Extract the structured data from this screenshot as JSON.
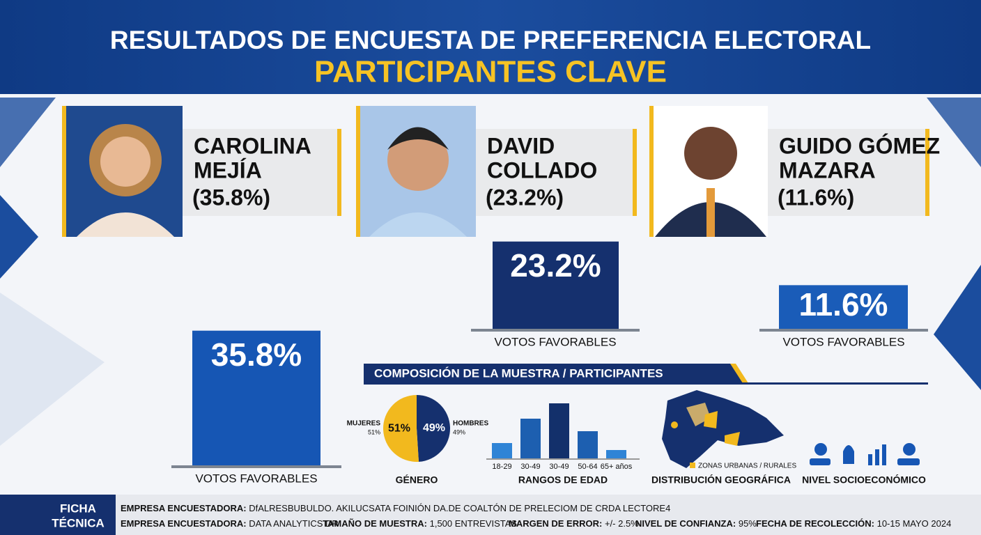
{
  "header": {
    "title": "RESULTADOS DE ENCUESTA DE PREFERENCIA ELECTORAL",
    "subtitle": "PARTICIPANTES CLAVE"
  },
  "candidates": [
    {
      "name_lines": [
        "CAROLINA",
        "MEJÍA"
      ],
      "share_label": "(35.8%)",
      "value": 35.8,
      "value_label": "35.8%",
      "caption": "VOTOS FAVORABLES",
      "color": "#1656b4"
    },
    {
      "name_lines": [
        "DAVID",
        "COLLADO"
      ],
      "share_label": "(23.2%)",
      "value": 23.2,
      "value_label": "23.2%",
      "caption": "VOTOS FAVORABLES",
      "color": "#15306e"
    },
    {
      "name_lines": [
        "GUIDO GÓMEZ",
        "MAZARA"
      ],
      "share_label": "(11.6%)",
      "value": 11.6,
      "value_label": "11.6%",
      "caption": "VOTOS FAVORABLES",
      "color": "#1a5cb8"
    }
  ],
  "composition": {
    "title": "COMPOSICIÓN DE LA MUESTRA / PARTICIPANTES",
    "gender": {
      "title": "GÉNERO",
      "slices": [
        {
          "name": "MUJERES",
          "value": 51,
          "value_label": "51%",
          "color": "#f2b91e"
        },
        {
          "name": "HOMBRES",
          "value": 49,
          "value_label": "49%",
          "color": "#15306e"
        }
      ]
    },
    "age": {
      "title": "RANGOS DE EDAD",
      "categories": [
        "18-29",
        "30-49",
        "30-49",
        "50-64",
        "65+ años"
      ],
      "values": [
        22,
        57,
        79,
        39,
        12
      ],
      "colors": [
        "#2f84d6",
        "#1d5fb0",
        "#13306b",
        "#1d5fb0",
        "#2f84d6"
      ]
    },
    "geography": {
      "title": "DISTRIBUCIÓN GEOGRÁFICA",
      "legend": "ZONAS URBANAS / RURALES"
    },
    "socioeconomic": {
      "title": "NIVEL SOCIOECONÓMICO"
    }
  },
  "footer": {
    "label_lines": [
      "FICHA",
      "TÉCNICA"
    ],
    "line1": {
      "label": "EMPRESA ENCUESTADORA:",
      "value": "DfALRESBUBULDO. AKILUCSATA FOINIÓN DA.DE COALTÓN DE PRELECIOM DE CRDA LECTORE4"
    },
    "items": [
      {
        "label": "EMPRESA ENCUESTADORA:",
        "value": "DATA ANALYTICS DR"
      },
      {
        "label": "TAMAÑO DE MUESTRA:",
        "value": "1,500 ENTREVISTAS"
      },
      {
        "label": "MARGEN DE ERROR:",
        "value": "+/- 2.5%"
      },
      {
        "label": "NIVEL DE CONFIANZA:",
        "value": "95%"
      },
      {
        "label": "FECHA DE RECOLECCIÓN:",
        "value": "10-15 MAYO 2024"
      }
    ]
  }
}
